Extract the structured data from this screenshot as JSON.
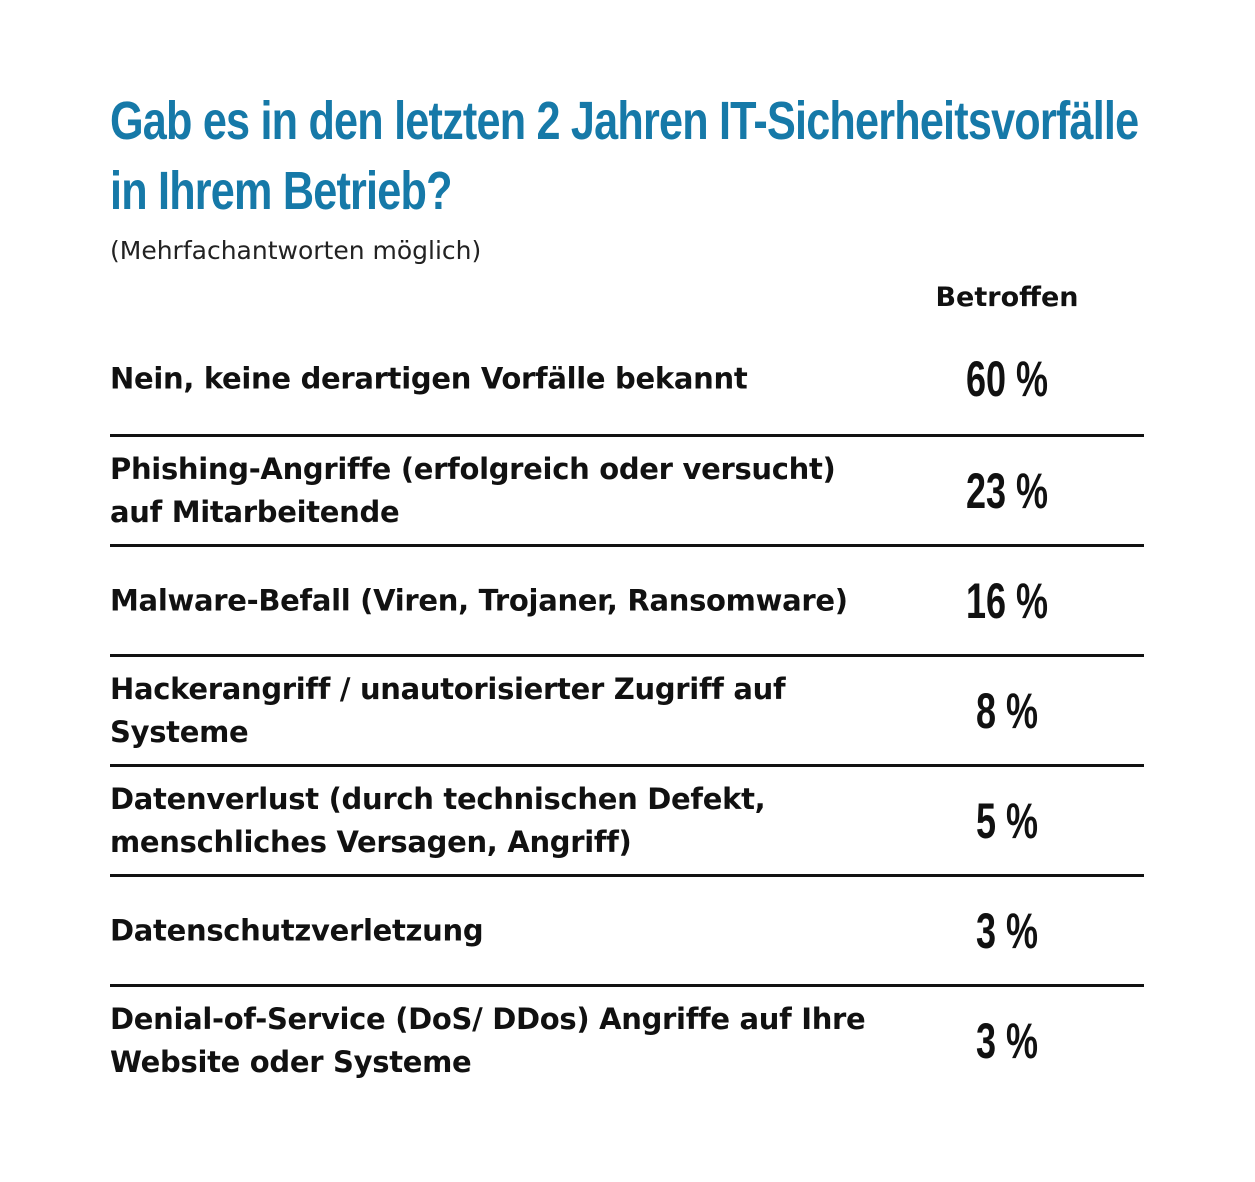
{
  "title_lines": [
    "Gab es in den letzten 2 Jahren IT-Sicherheitsvorfälle",
    "in Ihrem Betrieb?"
  ],
  "subtitle": "(Mehrfachantworten möglich)",
  "column_header": "Betroffen",
  "colors": {
    "title": "#1679a8",
    "text": "#111111",
    "rule": "#111111"
  },
  "chart_data": {
    "type": "table",
    "title": "Gab es in den letzten 2 Jahren IT-Sicherheitsvorfälle in Ihrem Betrieb?",
    "subtitle": "(Mehrfachantworten möglich)",
    "columns": [
      "",
      "Betroffen"
    ],
    "rows": [
      {
        "label": "Nein, keine derartigen Vorfälle bekannt",
        "value": 60,
        "display": "60 %"
      },
      {
        "label": "Phishing-Angriffe (erfolgreich oder versucht) auf Mitarbeitende",
        "value": 23,
        "display": "23 %"
      },
      {
        "label": "Malware-Befall (Viren, Trojaner, Ransomware)",
        "value": 16,
        "display": "16 %"
      },
      {
        "label": "Hackerangriff / unautorisierter Zugriff auf Systeme",
        "value": 8,
        "display": "8 %"
      },
      {
        "label": "Datenverlust (durch technischen Defekt, menschliches Versagen, Angriff)",
        "value": 5,
        "display": "5 %"
      },
      {
        "label": "Datenschutzverletzung",
        "value": 3,
        "display": "3 %"
      },
      {
        "label": "Denial-of-Service (DoS/ DDos) Angriffe auf Ihre Website oder Systeme",
        "value": 3,
        "display": "3 %"
      }
    ]
  }
}
